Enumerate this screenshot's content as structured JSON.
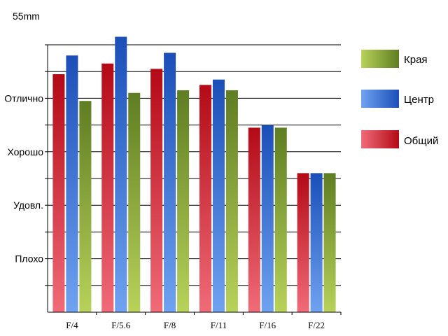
{
  "chart_data": {
    "type": "bar",
    "title": "55mm",
    "categories": [
      "F/4",
      "F/5.6",
      "F/8",
      "F/11",
      "F/16",
      "F/22"
    ],
    "y_tick_labels": [
      "Плохо",
      "Удовл.",
      "Хорошо",
      "Отлично"
    ],
    "y_tick_values": [
      2,
      4,
      6,
      8
    ],
    "ylim": [
      0,
      10
    ],
    "grid": true,
    "legend_position": "right",
    "series": [
      {
        "name": "Общий",
        "values": [
          8.9,
          9.3,
          9.1,
          8.5,
          6.9,
          5.2
        ],
        "color_light": "#f06b78",
        "color_dark": "#b30a16"
      },
      {
        "name": "Центр",
        "values": [
          9.6,
          10.3,
          9.7,
          8.7,
          7.0,
          5.2
        ],
        "color_light": "#6fa2f0",
        "color_dark": "#1b4fb8"
      },
      {
        "name": "Края",
        "values": [
          7.9,
          8.2,
          8.3,
          8.3,
          6.9,
          5.2
        ],
        "color_light": "#b8d25a",
        "color_dark": "#5f7d22"
      }
    ],
    "legend": [
      "Края",
      "Центр",
      "Общий"
    ]
  }
}
